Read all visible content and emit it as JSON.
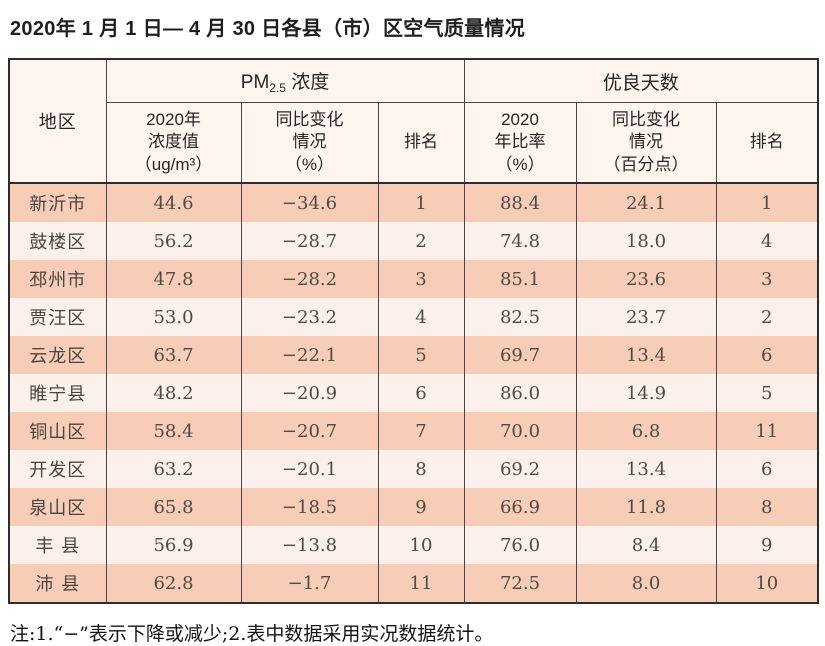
{
  "title": "2020年 1 月 1 日— 4 月 30 日各县（市）区空气质量情况",
  "table": {
    "region_header": "地区",
    "pm_group": {
      "prefix": "PM",
      "subscript": "2.5",
      "suffix": " 浓度"
    },
    "good_days_group": "优良天数",
    "columns": {
      "pm_value": "2020年\n浓度值\n（ug/m³）",
      "pm_change": "同比变化\n情况\n（%）",
      "pm_rank": "排名",
      "good_rate": "2020\n年比率\n（%）",
      "good_change": "同比变化\n情况\n（百分点）",
      "good_rank": "排名"
    },
    "rows": [
      [
        "新沂市",
        "44.6",
        "−34.6",
        "1",
        "88.4",
        "24.1",
        "1"
      ],
      [
        "鼓楼区",
        "56.2",
        "−28.7",
        "2",
        "74.8",
        "18.0",
        "4"
      ],
      [
        "邳州市",
        "47.8",
        "−28.2",
        "3",
        "85.1",
        "23.6",
        "3"
      ],
      [
        "贾汪区",
        "53.0",
        "−23.2",
        "4",
        "82.5",
        "23.7",
        "2"
      ],
      [
        "云龙区",
        "63.7",
        "−22.1",
        "5",
        "69.7",
        "13.4",
        "6"
      ],
      [
        "睢宁县",
        "48.2",
        "−20.9",
        "6",
        "86.0",
        "14.9",
        "5"
      ],
      [
        "铜山区",
        "58.4",
        "−20.7",
        "7",
        "70.0",
        "6.8",
        "11"
      ],
      [
        "开发区",
        "63.2",
        "−20.1",
        "8",
        "69.2",
        "13.4",
        "6"
      ],
      [
        "泉山区",
        "65.8",
        "−18.5",
        "9",
        "66.9",
        "11.8",
        "8"
      ],
      [
        "丰 县",
        "56.9",
        "−13.8",
        "10",
        "76.0",
        "8.4",
        "9"
      ],
      [
        "沛 县",
        "62.8",
        "−1.7",
        "11",
        "72.5",
        "8.0",
        "10"
      ]
    ]
  },
  "note": "注:1.“−”表示下降或减少;2.表中数据采用实况数据统计。",
  "colors": {
    "row_odd": "#f8cdb8",
    "row_even": "#fcf1ea",
    "header_bg": "#fdf5ee",
    "border_dark": "#2d2d2d",
    "border_light": "#474747"
  }
}
